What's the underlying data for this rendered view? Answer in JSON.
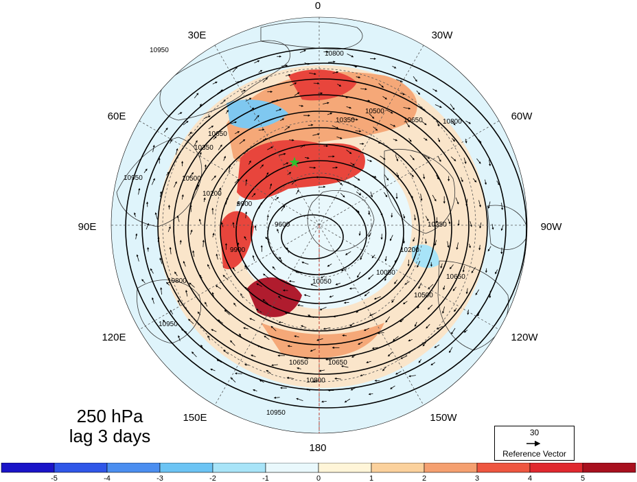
{
  "map": {
    "lon_labels": {
      "l0": "0",
      "l30w": "30W",
      "l60w": "60W",
      "l90w": "90W",
      "l120w": "120W",
      "l150w": "150W",
      "l180": "180",
      "l150e": "150E",
      "l120e": "120E",
      "l90e": "90E",
      "l60e": "60E",
      "l30e": "30E"
    },
    "contour_labels": [
      "10800",
      "10500",
      "10650",
      "10350",
      "10950",
      "10800",
      "10500",
      "10650",
      "10350",
      "10200",
      "9900",
      "9600",
      "10050",
      "10200",
      "10350",
      "10800",
      "10950",
      "10650",
      "10650",
      "10800",
      "10950",
      "9900",
      "10050",
      "10500",
      "10650",
      "10950"
    ],
    "colors": {
      "ocean_bg": "#dff4fb",
      "strong_pos": "#b01c2e",
      "pos": "#e8453c",
      "weak_pos": "#f5a878",
      "faint_pos": "#fde3c4",
      "neg": "#7fc8f0",
      "star": "#2ec02e"
    }
  },
  "panel": {
    "line1": "250 hPa",
    "line2": "lag 3 days"
  },
  "reference_vector": {
    "value": "30",
    "label": "Reference Vector"
  },
  "colorbar": {
    "ticks": [
      "-5",
      "-4",
      "-3",
      "-2",
      "-1",
      "0",
      "1",
      "2",
      "3",
      "4",
      "5"
    ],
    "colors": [
      "#1a14c8",
      "#2f56e8",
      "#4b8ef0",
      "#6cc4f4",
      "#a8e4f8",
      "#e9f8fc",
      "#fff5d8",
      "#fbd19c",
      "#f5a070",
      "#ee5640",
      "#e0282e",
      "#a8101e"
    ]
  }
}
